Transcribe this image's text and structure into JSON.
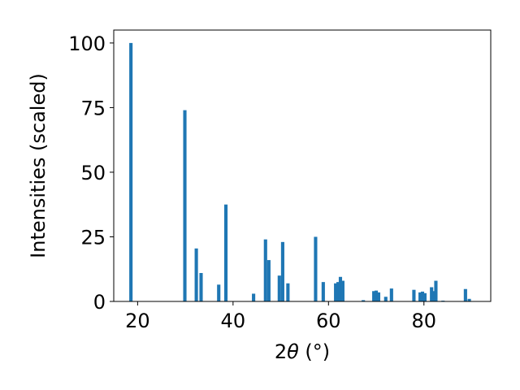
{
  "chart_data": {
    "type": "bar",
    "xlabel_prefix": "2",
    "xlabel_theta": "θ",
    "xlabel_suffix": " (°)",
    "ylabel": "Intensities (scaled)",
    "xlim": [
      15,
      94
    ],
    "ylim": [
      0,
      105
    ],
    "x_ticks": [
      20,
      40,
      60,
      80
    ],
    "y_ticks": [
      0,
      25,
      50,
      75,
      100
    ],
    "bar_color": "#1f77b4",
    "bar_width": 0.7,
    "grid": false,
    "x": [
      18.6,
      29.9,
      32.3,
      33.3,
      37.0,
      38.5,
      44.3,
      46.8,
      47.5,
      49.7,
      50.4,
      51.5,
      57.3,
      58.9,
      61.5,
      62.0,
      62.5,
      63.0,
      67.3,
      69.5,
      70.0,
      70.5,
      72.0,
      73.2,
      77.9,
      79.2,
      79.7,
      80.2,
      81.6,
      82.0,
      82.5,
      84.0,
      88.7,
      89.5
    ],
    "values": [
      100,
      74,
      20.5,
      11,
      6.5,
      37.5,
      3,
      24,
      16,
      10,
      23,
      7,
      25,
      7.5,
      7,
      7.5,
      9.5,
      8,
      0.5,
      4,
      4.2,
      3.5,
      1.8,
      5,
      4.5,
      3.5,
      3.8,
      3.2,
      5.5,
      4,
      8,
      0.3,
      4.8,
      1
    ]
  }
}
